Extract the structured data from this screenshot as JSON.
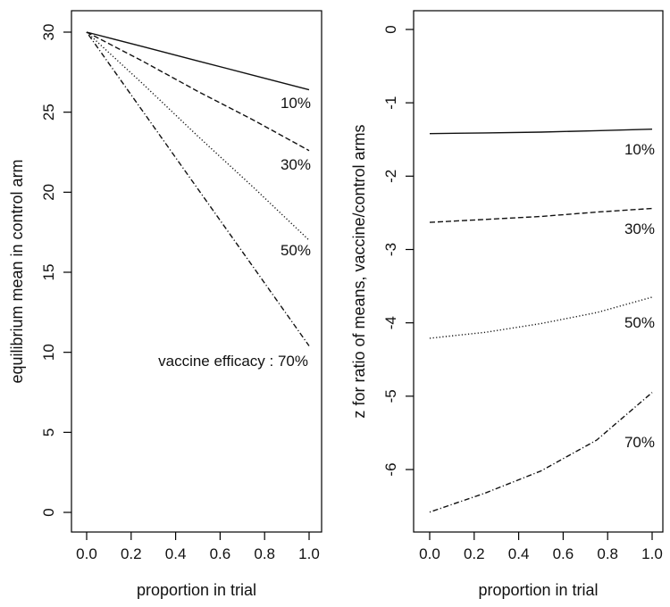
{
  "chart_data": [
    {
      "type": "line",
      "xlabel": "proportion in trial",
      "ylabel": "equilibrium mean in control arm",
      "xlim": [
        0,
        1
      ],
      "ylim": [
        0,
        30
      ],
      "xticks": [
        "0.0",
        "0.2",
        "0.4",
        "0.6",
        "0.8",
        "1.0"
      ],
      "yticks": [
        "0",
        "5",
        "10",
        "15",
        "20",
        "25",
        "30"
      ],
      "grid": false,
      "series": [
        {
          "label": "10%",
          "dash": "solid",
          "x": [
            0,
            0.25,
            0.5,
            0.75,
            1.0
          ],
          "y": [
            30.0,
            29.1,
            28.2,
            27.3,
            26.4
          ]
        },
        {
          "label": "30%",
          "dash": "dashed",
          "x": [
            0,
            0.25,
            0.5,
            0.75,
            1.0
          ],
          "y": [
            30.0,
            28.2,
            26.3,
            24.5,
            22.6
          ]
        },
        {
          "label": "50%",
          "dash": "dotted",
          "x": [
            0,
            0.25,
            0.5,
            0.75,
            1.0
          ],
          "y": [
            30.0,
            26.8,
            23.5,
            20.3,
            17.0
          ]
        },
        {
          "label": "vaccine efficacy : 70%",
          "dash": "dotdash",
          "x": [
            0,
            0.25,
            0.5,
            0.75,
            1.0
          ],
          "y": [
            30.0,
            25.1,
            20.2,
            15.3,
            10.4
          ]
        }
      ]
    },
    {
      "type": "line",
      "xlabel": "proportion in trial",
      "ylabel": "z for ratio of means, vaccine/control arms",
      "xlim": [
        0,
        1
      ],
      "ylim": [
        -6.7,
        0.15
      ],
      "xticks": [
        "0.0",
        "0.2",
        "0.4",
        "0.6",
        "0.8",
        "1.0"
      ],
      "yticks": [
        "0",
        "-1",
        "-2",
        "-3",
        "-4",
        "-5",
        "-6"
      ],
      "grid": false,
      "series": [
        {
          "label": "10%",
          "dash": "solid",
          "x": [
            0,
            0.25,
            0.5,
            0.75,
            1.0
          ],
          "y": [
            -1.42,
            -1.41,
            -1.4,
            -1.38,
            -1.36
          ]
        },
        {
          "label": "30%",
          "dash": "dashed",
          "x": [
            0,
            0.25,
            0.5,
            0.75,
            1.0
          ],
          "y": [
            -2.63,
            -2.59,
            -2.55,
            -2.49,
            -2.44
          ]
        },
        {
          "label": "50%",
          "dash": "dotted",
          "x": [
            0,
            0.25,
            0.5,
            0.75,
            1.0
          ],
          "y": [
            -4.21,
            -4.13,
            -4.01,
            -3.86,
            -3.65
          ]
        },
        {
          "label": "70%",
          "dash": "dotdash",
          "x": [
            0,
            0.25,
            0.5,
            0.75,
            1.0
          ],
          "y": [
            -6.58,
            -6.32,
            -6.02,
            -5.6,
            -4.95
          ]
        }
      ]
    }
  ]
}
